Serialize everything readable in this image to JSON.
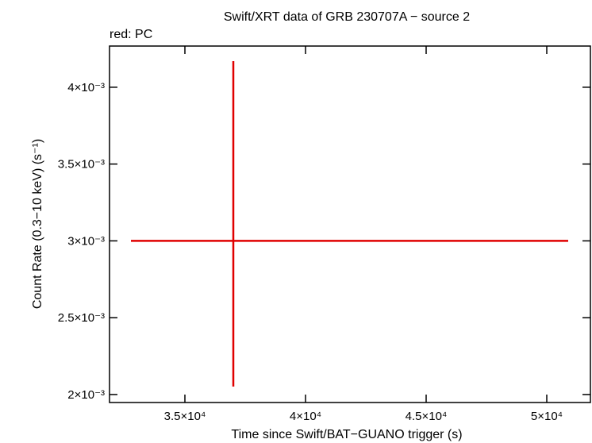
{
  "chart_data": {
    "type": "errorbar",
    "title": "Swift/XRT data of GRB 230707A − source 2",
    "subtitle": "red: PC",
    "xlabel": "Time since Swift/BAT−GUANO trigger (s)",
    "ylabel": "Count Rate (0.3−10 keV) (s⁻¹)",
    "xlim": [
      31875,
      51809
    ],
    "ylim": [
      0.001948,
      0.004268
    ],
    "xticks": [
      {
        "value": 35000,
        "label": "3.5×10⁴"
      },
      {
        "value": 40000,
        "label": "4×10⁴"
      },
      {
        "value": 45000,
        "label": "4.5×10⁴"
      },
      {
        "value": 50000,
        "label": "5×10⁴"
      }
    ],
    "yticks": [
      {
        "value": 0.002,
        "label": "2×10⁻³"
      },
      {
        "value": 0.0025,
        "label": "2.5×10⁻³"
      },
      {
        "value": 0.003,
        "label": "3×10⁻³"
      },
      {
        "value": 0.0035,
        "label": "3.5×10⁻³"
      },
      {
        "value": 0.004,
        "label": "4×10⁻³"
      }
    ],
    "series": [
      {
        "name": "PC",
        "color": "#e00000",
        "x": [
          37007
        ],
        "xerr_minus": [
          4244
        ],
        "xerr_plus": [
          13881
        ],
        "values": [
          0.003
        ],
        "yerr_minus": [
          0.000948
        ],
        "yerr_plus": [
          0.00117
        ]
      }
    ]
  }
}
